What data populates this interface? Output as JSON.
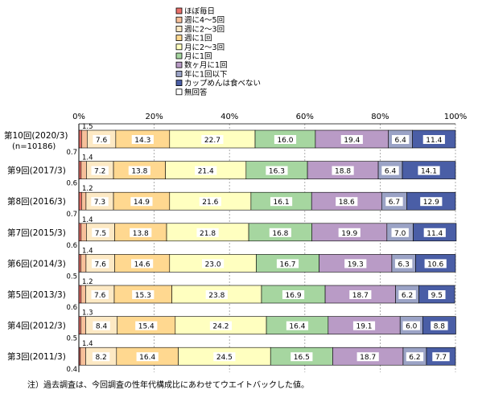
{
  "chart_data": {
    "type": "bar",
    "orientation": "horizontal",
    "stacked": true,
    "percent": true,
    "categories": [
      [
        "第10回(2020/3)",
        "(n=10186)"
      ],
      [
        "第9回(2017/3)"
      ],
      [
        "第8回(2016/3)"
      ],
      [
        "第7回(2015/3)"
      ],
      [
        "第6回(2014/3)"
      ],
      [
        "第5回(2013/3)"
      ],
      [
        "第4回(2012/3)"
      ],
      [
        "第3回(2011/3)"
      ]
    ],
    "series": [
      {
        "name": "ほぼ毎日",
        "color": "#e8706a",
        "values": [
          0.7,
          0.6,
          0.7,
          0.6,
          0.5,
          0.6,
          0.5,
          0.4
        ]
      },
      {
        "name": "週に4～5回",
        "color": "#f7c09a",
        "values": [
          1.5,
          1.4,
          1.2,
          1.4,
          1.4,
          1.2,
          1.3,
          1.4
        ]
      },
      {
        "name": "週に2～3回",
        "color": "#fde9c4",
        "values": [
          7.6,
          7.2,
          7.3,
          7.5,
          7.6,
          7.6,
          8.4,
          8.2
        ]
      },
      {
        "name": "週に1回",
        "color": "#ffd890",
        "values": [
          14.3,
          13.8,
          14.9,
          13.8,
          14.6,
          15.3,
          15.4,
          16.4
        ]
      },
      {
        "name": "月に2～3回",
        "color": "#ffffc0",
        "values": [
          22.7,
          21.4,
          21.6,
          21.8,
          23.0,
          23.8,
          24.2,
          24.5
        ]
      },
      {
        "name": "月に1回",
        "color": "#a6d6a0",
        "values": [
          16.0,
          16.3,
          16.1,
          16.8,
          16.7,
          16.9,
          16.4,
          16.5
        ]
      },
      {
        "name": "数ヶ月に1回",
        "color": "#b99bc6",
        "values": [
          19.4,
          18.8,
          18.6,
          19.9,
          19.3,
          18.7,
          19.1,
          18.7
        ]
      },
      {
        "name": "年に1回以下",
        "color": "#9ba3c6",
        "values": [
          6.4,
          6.4,
          6.7,
          7.0,
          6.3,
          6.2,
          6.0,
          6.2
        ]
      },
      {
        "name": "カップめんは食べない",
        "color": "#4a5ea6",
        "values": [
          11.4,
          14.1,
          12.9,
          11.4,
          10.6,
          9.5,
          8.8,
          7.7
        ]
      },
      {
        "name": "無回答",
        "color": "#ffffff",
        "values": [
          0,
          0,
          0,
          0,
          0,
          0,
          0,
          0
        ]
      }
    ],
    "xticks": [
      "0%",
      "20%",
      "40%",
      "60%",
      "80%",
      "100%"
    ],
    "xlim": [
      0,
      100
    ],
    "grid": true,
    "legend": "top-center",
    "label_series": [
      2,
      3,
      4,
      5,
      6,
      7,
      8
    ],
    "above_series": 1,
    "below_series": 0
  },
  "footnote": "注）過去調査は、今回調査の性年代構成比にあわせてウエイトバックした値。"
}
